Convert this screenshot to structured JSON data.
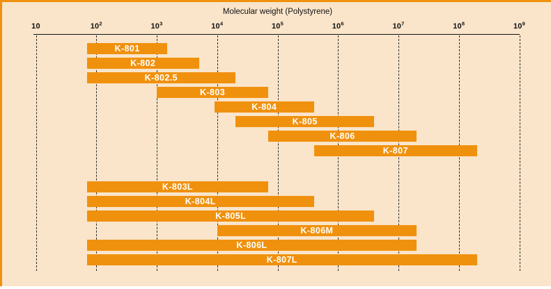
{
  "page": {
    "background": "#fae5ca",
    "accent": "#f0910e",
    "bottom_strip_color": "#ffffff",
    "grid_color": "#2a2a2a",
    "text_color": "#111111"
  },
  "chart_data": {
    "type": "bar",
    "orientation": "horizontal-range",
    "title": "Molecular weight (Polystyrene)",
    "x_axis": {
      "scale": "log10",
      "min": 10,
      "max": 1000000000,
      "gridlines": "vertical-dashed",
      "ticks": [
        {
          "label": "10",
          "exp": ""
        },
        {
          "label": "10",
          "exp": "2"
        },
        {
          "label": "10",
          "exp": "3"
        },
        {
          "label": "10",
          "exp": "4"
        },
        {
          "label": "10",
          "exp": "5"
        },
        {
          "label": "10",
          "exp": "6"
        },
        {
          "label": "10",
          "exp": "7"
        },
        {
          "label": "10",
          "exp": "8"
        },
        {
          "label": "10",
          "exp": "9"
        }
      ]
    },
    "bar_color": "#f0910e",
    "bar_label_color": "#ffffff",
    "bars": [
      {
        "label": "K-801",
        "mw_min": 70,
        "mw_max": 1500,
        "group": 1
      },
      {
        "label": "K-802",
        "mw_min": 70,
        "mw_max": 5000,
        "group": 1
      },
      {
        "label": "K-802.5",
        "mw_min": 70,
        "mw_max": 20000,
        "group": 1
      },
      {
        "label": "K-803",
        "mw_min": 1000,
        "mw_max": 70000,
        "group": 1
      },
      {
        "label": "K-804",
        "mw_min": 9000,
        "mw_max": 400000,
        "group": 1
      },
      {
        "label": "K-805",
        "mw_min": 20000,
        "mw_max": 4000000,
        "group": 1
      },
      {
        "label": "K-806",
        "mw_min": 70000,
        "mw_max": 20000000,
        "group": 1
      },
      {
        "label": "K-807",
        "mw_min": 400000,
        "mw_max": 200000000,
        "group": 1
      },
      {
        "label": "K-803L",
        "mw_min": 70,
        "mw_max": 70000,
        "group": 2
      },
      {
        "label": "K-804L",
        "mw_min": 70,
        "mw_max": 400000,
        "group": 2
      },
      {
        "label": "K-805L",
        "mw_min": 70,
        "mw_max": 4000000,
        "group": 2
      },
      {
        "label": "K-806M",
        "mw_min": 10000,
        "mw_max": 20000000,
        "group": 2
      },
      {
        "label": "K-806L",
        "mw_min": 70,
        "mw_max": 20000000,
        "group": 2
      },
      {
        "label": "K-807L",
        "mw_min": 70,
        "mw_max": 200000000,
        "group": 2
      }
    ]
  }
}
